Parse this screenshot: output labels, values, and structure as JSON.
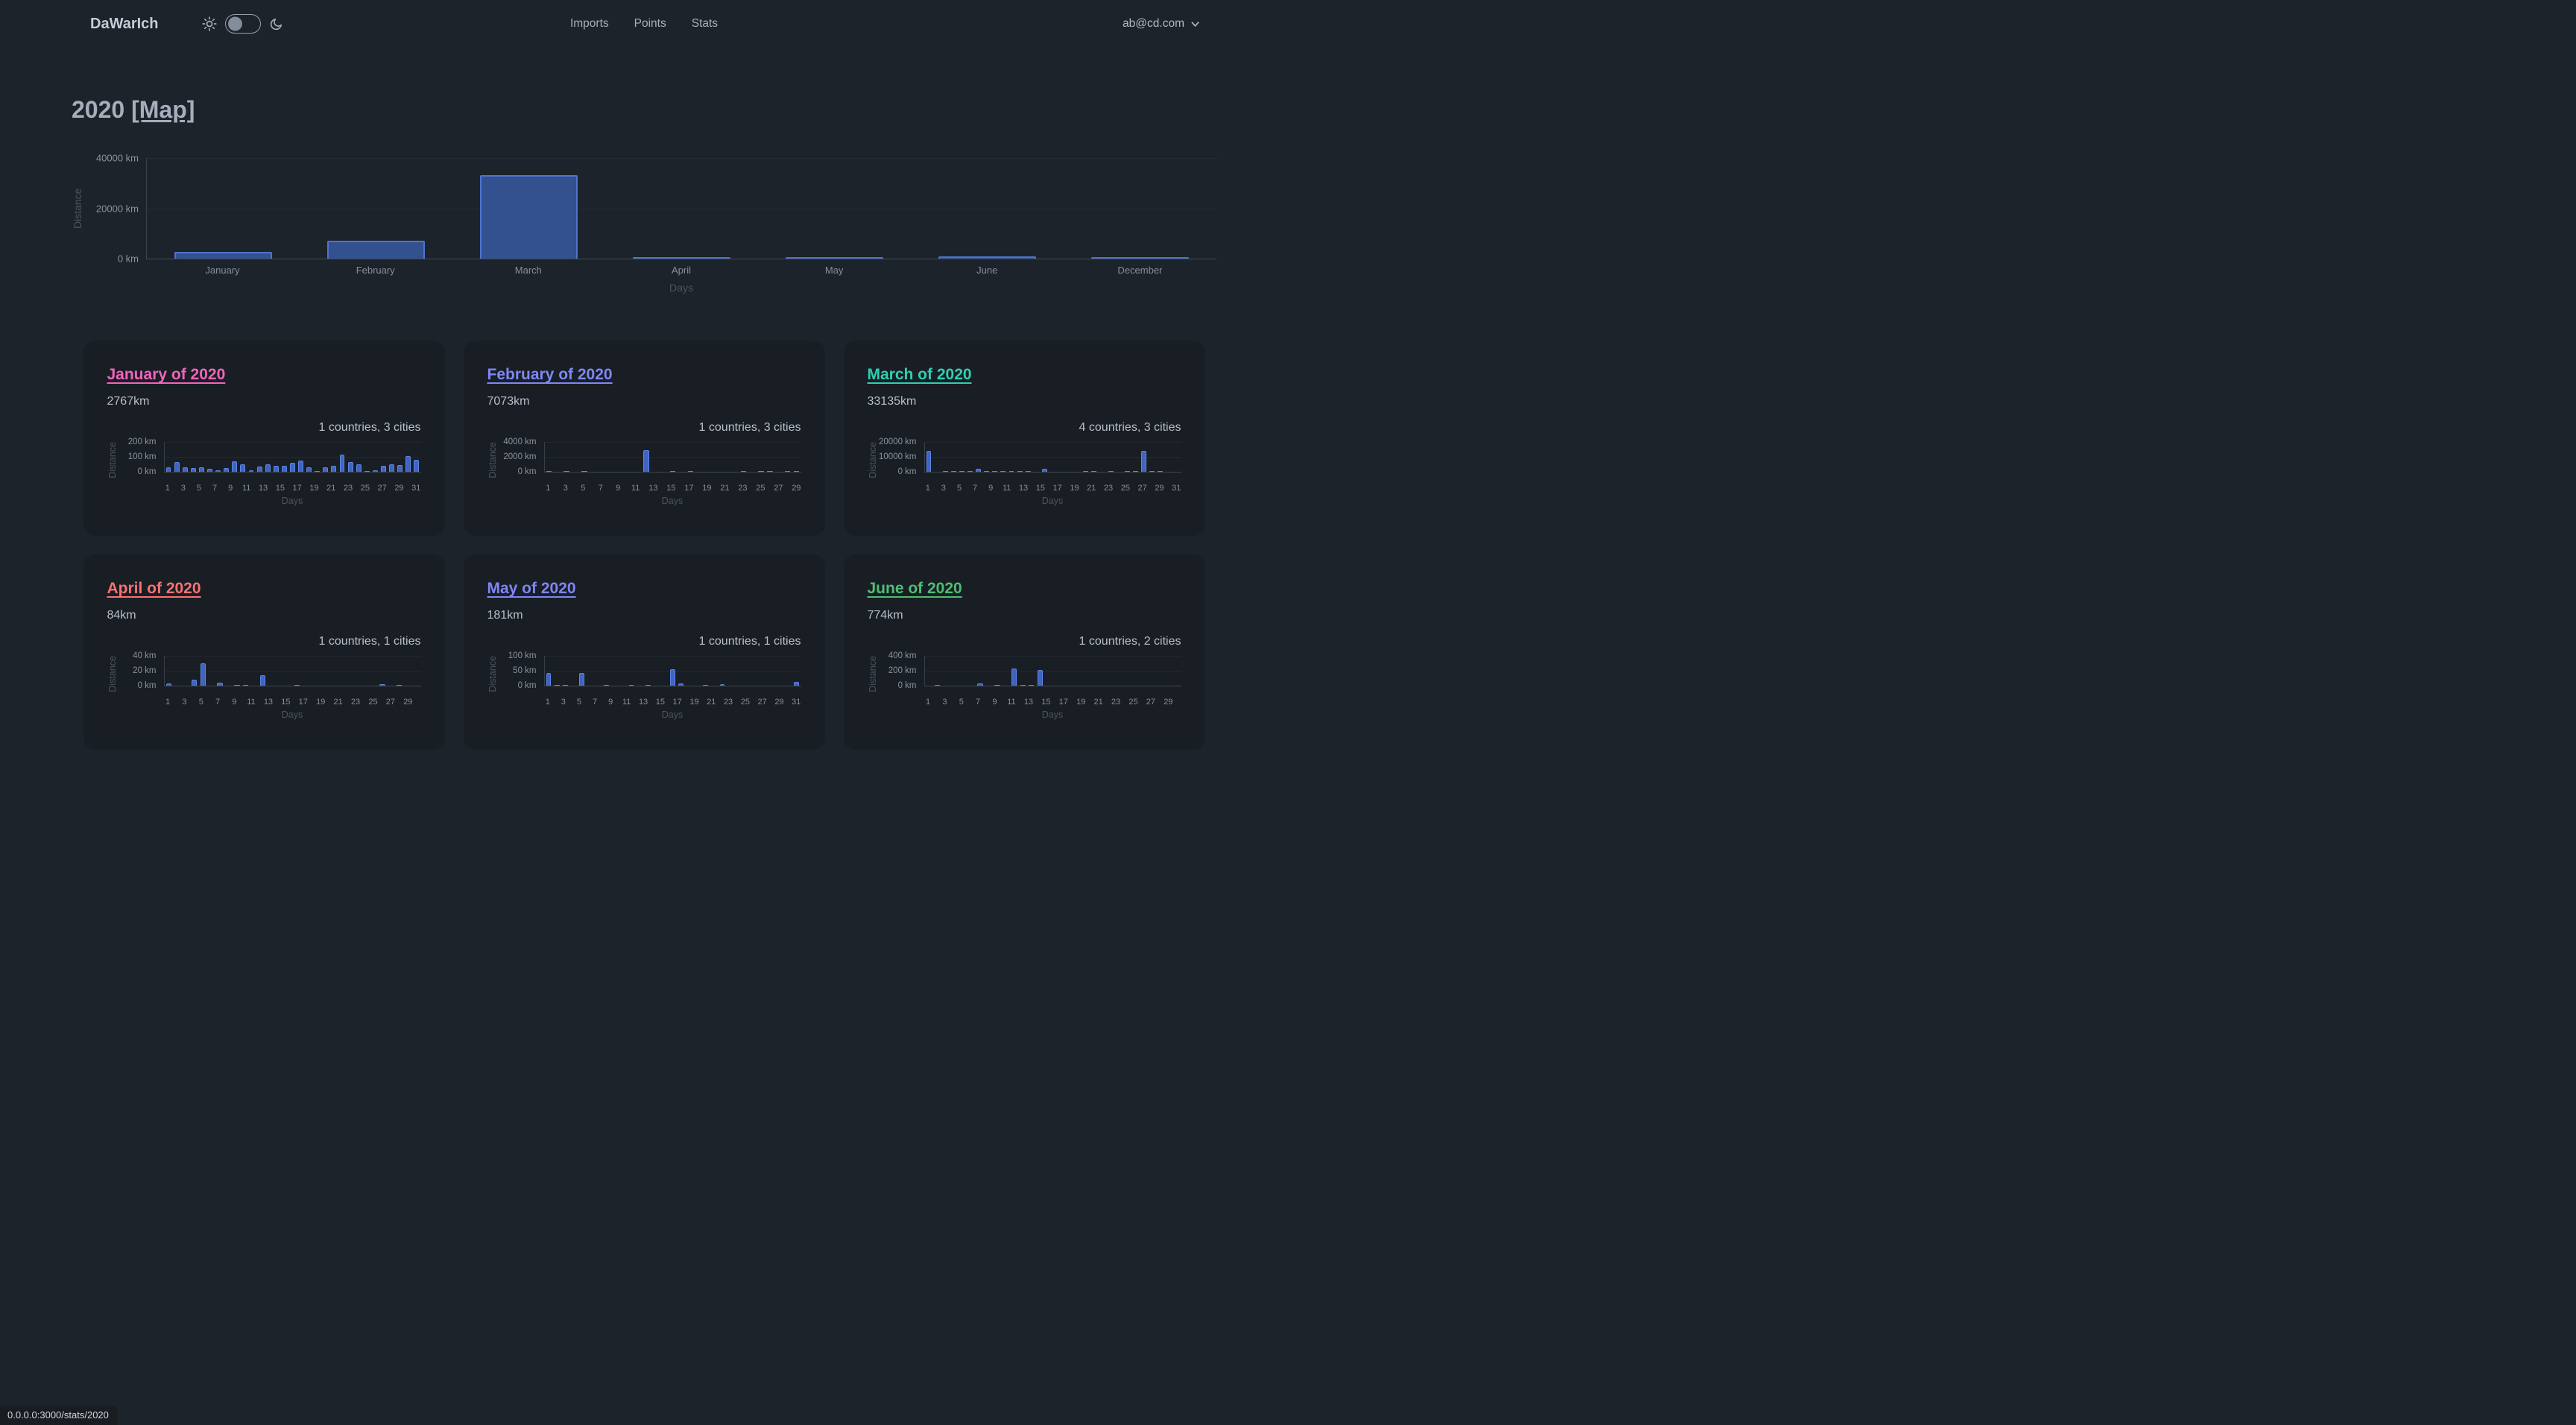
{
  "header": {
    "logo": "DaWarIch",
    "nav": [
      {
        "label": "Imports"
      },
      {
        "label": "Points"
      },
      {
        "label": "Stats"
      }
    ],
    "theme_toggle": {
      "sun_icon": "sun",
      "moon_icon": "moon",
      "checked": false
    },
    "user_email": "ab@cd.com"
  },
  "page": {
    "year": "2020",
    "map_link": "[Map]"
  },
  "colors": {
    "background": "#1d232a",
    "card_background": "#191e24",
    "year_bar_fill": "#33508f",
    "year_bar_border": "#4d73cf",
    "mini_bar_fill": "#4064c0",
    "mini_bar_border": "#5d86e7"
  },
  "year_chart": {
    "type": "bar",
    "ylabel": "Distance",
    "xlabel": "Days",
    "ymax": 40000,
    "yticks": [
      {
        "value": 0,
        "label": "0 km"
      },
      {
        "value": 20000,
        "label": "20000 km"
      },
      {
        "value": 40000,
        "label": "40000 km"
      }
    ],
    "categories": [
      "January",
      "February",
      "March",
      "April",
      "May",
      "June",
      "December"
    ],
    "values": [
      2767,
      7073,
      33135,
      84,
      181,
      774,
      400
    ]
  },
  "month_cards": [
    {
      "title": "January of 2020",
      "color": "#f264bb",
      "distance": "2767km",
      "summary": "1 countries, 3 cities",
      "chart": {
        "type": "bar",
        "ylabel": "Distance",
        "xlabel": "Days",
        "ymax": 200,
        "yticks": [
          {
            "value": 0,
            "label": "0 km"
          },
          {
            "value": 100,
            "label": "100 km"
          },
          {
            "value": 200,
            "label": "200 km"
          }
        ],
        "days": 31,
        "values": [
          30,
          65,
          30,
          25,
          30,
          20,
          10,
          25,
          68,
          50,
          10,
          35,
          52,
          42,
          40,
          60,
          75,
          28,
          5,
          28,
          40,
          115,
          65,
          52,
          3,
          12,
          40,
          52,
          45,
          105,
          78
        ]
      }
    },
    {
      "title": "February of 2020",
      "color": "#7e88f5",
      "distance": "7073km",
      "summary": "1 countries, 3 cities",
      "chart": {
        "type": "bar",
        "ylabel": "Distance",
        "xlabel": "Days",
        "ymax": 4000,
        "yticks": [
          {
            "value": 0,
            "label": "0 km"
          },
          {
            "value": 2000,
            "label": "2000 km"
          },
          {
            "value": 4000,
            "label": "4000 km"
          }
        ],
        "days": 29,
        "values": [
          40,
          0,
          50,
          0,
          40,
          0,
          0,
          0,
          0,
          0,
          0,
          2900,
          0,
          0,
          40,
          0,
          50,
          0,
          0,
          0,
          0,
          0,
          40,
          0,
          50,
          40,
          0,
          40,
          50
        ]
      }
    },
    {
      "title": "March of 2020",
      "color": "#2fcfb2",
      "distance": "33135km",
      "summary": "4 countries, 3 cities",
      "chart": {
        "type": "bar",
        "ylabel": "Distance",
        "xlabel": "Days",
        "ymax": 20000,
        "yticks": [
          {
            "value": 0,
            "label": "0 km"
          },
          {
            "value": 10000,
            "label": "10000 km"
          },
          {
            "value": 20000,
            "label": "20000 km"
          }
        ],
        "days": 31,
        "values": [
          14000,
          0,
          150,
          150,
          150,
          200,
          1800,
          150,
          150,
          150,
          150,
          150,
          150,
          0,
          1800,
          0,
          0,
          0,
          0,
          150,
          150,
          0,
          150,
          0,
          150,
          150,
          14000,
          150,
          150,
          0,
          0
        ]
      }
    },
    {
      "title": "April of 2020",
      "color": "#f87272",
      "distance": "84km",
      "summary": "1 countries, 1 cities",
      "chart": {
        "type": "bar",
        "ylabel": "Distance",
        "xlabel": "Days",
        "ymax": 40,
        "yticks": [
          {
            "value": 0,
            "label": "0 km"
          },
          {
            "value": 20,
            "label": "20 km"
          },
          {
            "value": 40,
            "label": "40 km"
          }
        ],
        "days": 30,
        "values": [
          3,
          0,
          0,
          8,
          30,
          0,
          4,
          0,
          1,
          1,
          0,
          14,
          0,
          0,
          0,
          1,
          0,
          0,
          0,
          0,
          0,
          0,
          0,
          0,
          0,
          2,
          0,
          1,
          0,
          0
        ]
      }
    },
    {
      "title": "May of 2020",
      "color": "#7e85f6",
      "distance": "181km",
      "summary": "1 countries, 1 cities",
      "chart": {
        "type": "bar",
        "ylabel": "Distance",
        "xlabel": "Days",
        "ymax": 100,
        "yticks": [
          {
            "value": 0,
            "label": "0 km"
          },
          {
            "value": 50,
            "label": "50 km"
          },
          {
            "value": 100,
            "label": "100 km"
          }
        ],
        "days": 31,
        "values": [
          42,
          3,
          3,
          0,
          42,
          0,
          0,
          1,
          0,
          0,
          2,
          0,
          1,
          0,
          0,
          55,
          7,
          0,
          0,
          1,
          0,
          4,
          0,
          0,
          0,
          0,
          0,
          0,
          0,
          0,
          13
        ]
      }
    },
    {
      "title": "June of 2020",
      "color": "#4fbd74",
      "distance": "774km",
      "summary": "1 countries, 2 cities",
      "chart": {
        "type": "bar",
        "ylabel": "Distance",
        "xlabel": "Days",
        "ymax": 400,
        "yticks": [
          {
            "value": 0,
            "label": "0 km"
          },
          {
            "value": 200,
            "label": "200 km"
          },
          {
            "value": 400,
            "label": "400 km"
          }
        ],
        "days": 30,
        "values": [
          0,
          15,
          0,
          0,
          0,
          0,
          30,
          0,
          15,
          0,
          235,
          5,
          15,
          215,
          0,
          0,
          0,
          0,
          0,
          0,
          0,
          0,
          0,
          0,
          0,
          0,
          0,
          0,
          0,
          0
        ]
      }
    }
  ],
  "status_bar": {
    "url": "0.0.0.0:3000/stats/2020"
  }
}
